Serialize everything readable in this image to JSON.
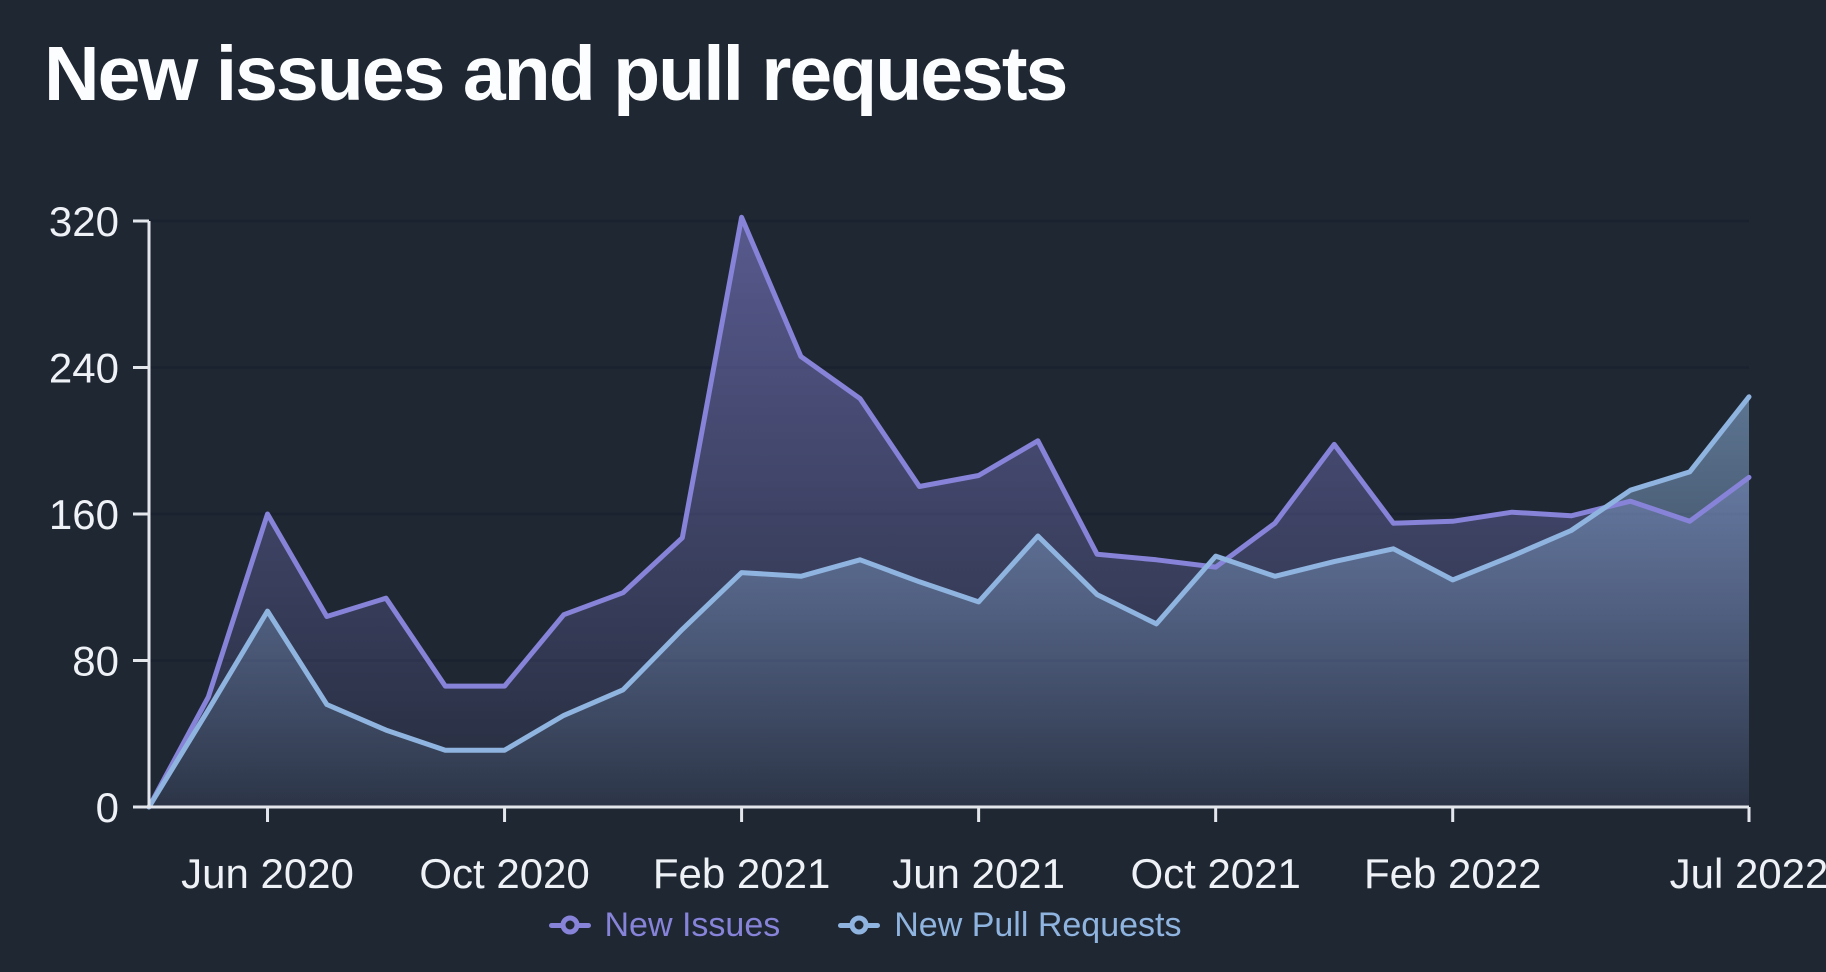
{
  "page": {
    "title": "New issues and pull requests",
    "background_color": "#1f2733",
    "title_color": "#fcfdfe",
    "axis_color": "#e3e7ec",
    "tick_label_color": "#eef1f5",
    "gridline_color": "#1a212f"
  },
  "legend": {
    "items": [
      {
        "label": "New Issues",
        "color": "#8683d8"
      },
      {
        "label": "New Pull Requests",
        "color": "#8fb4df"
      }
    ]
  },
  "chart_data": {
    "type": "area",
    "title": "New issues and pull requests",
    "xlabel": "",
    "ylabel": "",
    "ylim": [
      0,
      320
    ],
    "y_ticks": [
      0,
      80,
      160,
      240,
      320
    ],
    "grid": true,
    "legend_position": "bottom-center",
    "x": [
      "Apr 2020",
      "May 2020",
      "Jun 2020",
      "Jul 2020",
      "Aug 2020",
      "Sep 2020",
      "Oct 2020",
      "Nov 2020",
      "Dec 2020",
      "Jan 2021",
      "Feb 2021",
      "Mar 2021",
      "Apr 2021",
      "May 2021",
      "Jun 2021",
      "Jul 2021",
      "Aug 2021",
      "Sep 2021",
      "Oct 2021",
      "Nov 2021",
      "Dec 2021",
      "Jan 2022",
      "Feb 2022",
      "Mar 2022",
      "Apr 2022",
      "May 2022",
      "Jun 2022",
      "Jul 2022"
    ],
    "x_tick_labels": [
      {
        "index": 2,
        "label": "Jun 2020"
      },
      {
        "index": 6,
        "label": "Oct 2020"
      },
      {
        "index": 10,
        "label": "Feb 2021"
      },
      {
        "index": 14,
        "label": "Jun 2021"
      },
      {
        "index": 18,
        "label": "Oct 2021"
      },
      {
        "index": 22,
        "label": "Feb 2022"
      },
      {
        "index": 27,
        "label": "Jul 2022"
      }
    ],
    "series": [
      {
        "name": "New Issues",
        "color": "#8683d8",
        "values": [
          0,
          60,
          160,
          104,
          114,
          66,
          66,
          105,
          117,
          147,
          322,
          246,
          223,
          175,
          181,
          200,
          138,
          135,
          131,
          155,
          198,
          155,
          156,
          161,
          159,
          167,
          156,
          180
        ]
      },
      {
        "name": "New Pull Requests",
        "color": "#8fb4df",
        "values": [
          0,
          53,
          107,
          56,
          42,
          31,
          31,
          50,
          64,
          97,
          128,
          126,
          135,
          123,
          112,
          148,
          116,
          100,
          137,
          126,
          134,
          141,
          124,
          137,
          151,
          173,
          183,
          224
        ]
      }
    ]
  }
}
